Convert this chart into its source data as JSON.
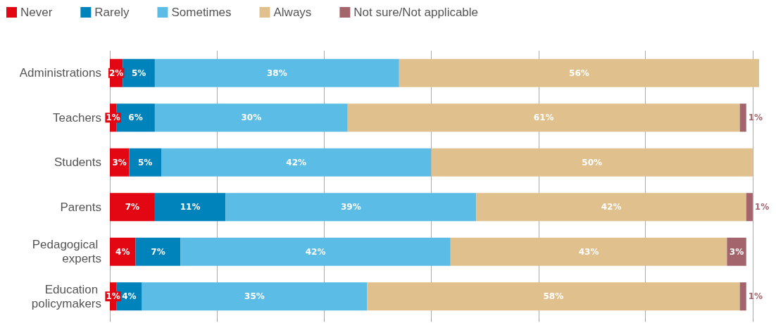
{
  "chart_data": {
    "type": "bar",
    "orientation": "horizontal",
    "stacked": true,
    "categories": [
      "Administrations",
      "Teachers",
      "Students",
      "Parents",
      "Pedagogical experts",
      "Education policymakers"
    ],
    "series": [
      {
        "name": "Never",
        "color": "#e30613",
        "values": [
          2,
          1,
          3,
          7,
          4,
          1
        ],
        "value_labels": [
          "2%",
          "1%",
          "3%",
          "7%",
          "4%",
          "1%"
        ]
      },
      {
        "name": "Rarely",
        "color": "#0082ba",
        "values": [
          5,
          6,
          5,
          11,
          7,
          4
        ],
        "value_labels": [
          "5%",
          "6%",
          "5%",
          "11%",
          "7%",
          "4%"
        ]
      },
      {
        "name": "Sometimes",
        "color": "#5bbce6",
        "values": [
          38,
          30,
          42,
          39,
          42,
          35
        ],
        "value_labels": [
          "38%",
          "30%",
          "42%",
          "39%",
          "42%",
          "35%"
        ]
      },
      {
        "name": "Always",
        "color": "#e0c18e",
        "values": [
          56,
          61,
          50,
          42,
          43,
          58
        ],
        "value_labels": [
          "56%",
          "61%",
          "50%",
          "42%",
          "43%",
          "58%"
        ]
      },
      {
        "name": "Not sure/Not applicable",
        "color": "#a3656b",
        "values": [
          null,
          1,
          null,
          1,
          3,
          1
        ],
        "value_labels": [
          null,
          "1%",
          null,
          "1%",
          "3%",
          "1%"
        ]
      }
    ],
    "xlim": [
      0,
      101
    ],
    "xticks": [
      {
        "value": 0,
        "label": null
      },
      {
        "value": 16.7,
        "label": null
      },
      {
        "value": 33.3,
        "label": null
      },
      {
        "value": 50,
        "label": null
      },
      {
        "value": 66.7,
        "label": null
      },
      {
        "value": 83.3,
        "label": null
      },
      {
        "value": 100,
        "label": null
      }
    ],
    "grid": "x",
    "legend": "top left",
    "tick_labels": "y"
  }
}
